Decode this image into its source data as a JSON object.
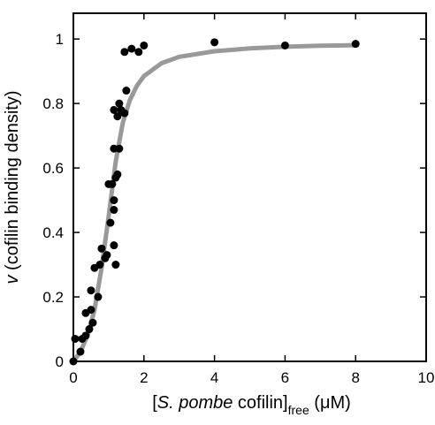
{
  "chart_data": {
    "type": "scatter",
    "title": "",
    "xlabel": {
      "prefix": "[",
      "species": "S. pombe",
      "name": " cofilin]",
      "subscript": "free",
      "unit": " (μM)"
    },
    "ylabel": {
      "symbol": "v",
      "text": " (cofilin binding density)"
    },
    "xlim": [
      0,
      10
    ],
    "ylim": [
      0,
      1.08
    ],
    "xticks": [
      0,
      2,
      4,
      6,
      8,
      10
    ],
    "yticks": [
      0,
      0.2,
      0.4,
      0.6,
      0.8,
      1
    ],
    "ytick_labels": [
      "0",
      "0.2",
      "0.4",
      "0.6",
      "0.8",
      "1"
    ],
    "grid": false,
    "series": [
      {
        "kind": "points",
        "color": "#000000",
        "points": [
          {
            "x": 0.0,
            "y": 0.0
          },
          {
            "x": 0.05,
            "y": 0.07
          },
          {
            "x": 0.2,
            "y": 0.03
          },
          {
            "x": 0.25,
            "y": 0.07
          },
          {
            "x": 0.35,
            "y": 0.08
          },
          {
            "x": 0.35,
            "y": 0.15
          },
          {
            "x": 0.45,
            "y": 0.1
          },
          {
            "x": 0.5,
            "y": 0.16
          },
          {
            "x": 0.5,
            "y": 0.22
          },
          {
            "x": 0.55,
            "y": 0.12
          },
          {
            "x": 0.6,
            "y": 0.29
          },
          {
            "x": 0.7,
            "y": 0.2
          },
          {
            "x": 0.75,
            "y": 0.3
          },
          {
            "x": 0.8,
            "y": 0.35
          },
          {
            "x": 0.9,
            "y": 0.32
          },
          {
            "x": 0.95,
            "y": 0.33
          },
          {
            "x": 1.0,
            "y": 0.55
          },
          {
            "x": 1.05,
            "y": 0.43
          },
          {
            "x": 1.1,
            "y": 0.55
          },
          {
            "x": 1.15,
            "y": 0.36
          },
          {
            "x": 1.15,
            "y": 0.47
          },
          {
            "x": 1.15,
            "y": 0.5
          },
          {
            "x": 1.15,
            "y": 0.66
          },
          {
            "x": 1.15,
            "y": 0.78
          },
          {
            "x": 1.2,
            "y": 0.3
          },
          {
            "x": 1.2,
            "y": 0.57
          },
          {
            "x": 1.25,
            "y": 0.58
          },
          {
            "x": 1.25,
            "y": 0.76
          },
          {
            "x": 1.3,
            "y": 0.66
          },
          {
            "x": 1.3,
            "y": 0.8
          },
          {
            "x": 1.35,
            "y": 0.78
          },
          {
            "x": 1.45,
            "y": 0.77
          },
          {
            "x": 1.45,
            "y": 0.96
          },
          {
            "x": 1.5,
            "y": 0.84
          },
          {
            "x": 1.65,
            "y": 0.97
          },
          {
            "x": 1.85,
            "y": 0.96
          },
          {
            "x": 2.0,
            "y": 0.98
          },
          {
            "x": 4.0,
            "y": 0.99
          },
          {
            "x": 6.0,
            "y": 0.98
          },
          {
            "x": 8.0,
            "y": 0.985
          }
        ]
      },
      {
        "kind": "fit-curve",
        "color": "#999999",
        "points": [
          {
            "x": 0.0,
            "y": 0.0
          },
          {
            "x": 0.2,
            "y": 0.03
          },
          {
            "x": 0.4,
            "y": 0.08
          },
          {
            "x": 0.6,
            "y": 0.16
          },
          {
            "x": 0.8,
            "y": 0.29
          },
          {
            "x": 1.0,
            "y": 0.45
          },
          {
            "x": 1.2,
            "y": 0.62
          },
          {
            "x": 1.4,
            "y": 0.74
          },
          {
            "x": 1.6,
            "y": 0.81
          },
          {
            "x": 1.8,
            "y": 0.855
          },
          {
            "x": 2.0,
            "y": 0.885
          },
          {
            "x": 2.5,
            "y": 0.925
          },
          {
            "x": 3.0,
            "y": 0.945
          },
          {
            "x": 4.0,
            "y": 0.962
          },
          {
            "x": 5.0,
            "y": 0.971
          },
          {
            "x": 6.0,
            "y": 0.976
          },
          {
            "x": 7.0,
            "y": 0.979
          },
          {
            "x": 8.0,
            "y": 0.981
          }
        ]
      }
    ]
  }
}
